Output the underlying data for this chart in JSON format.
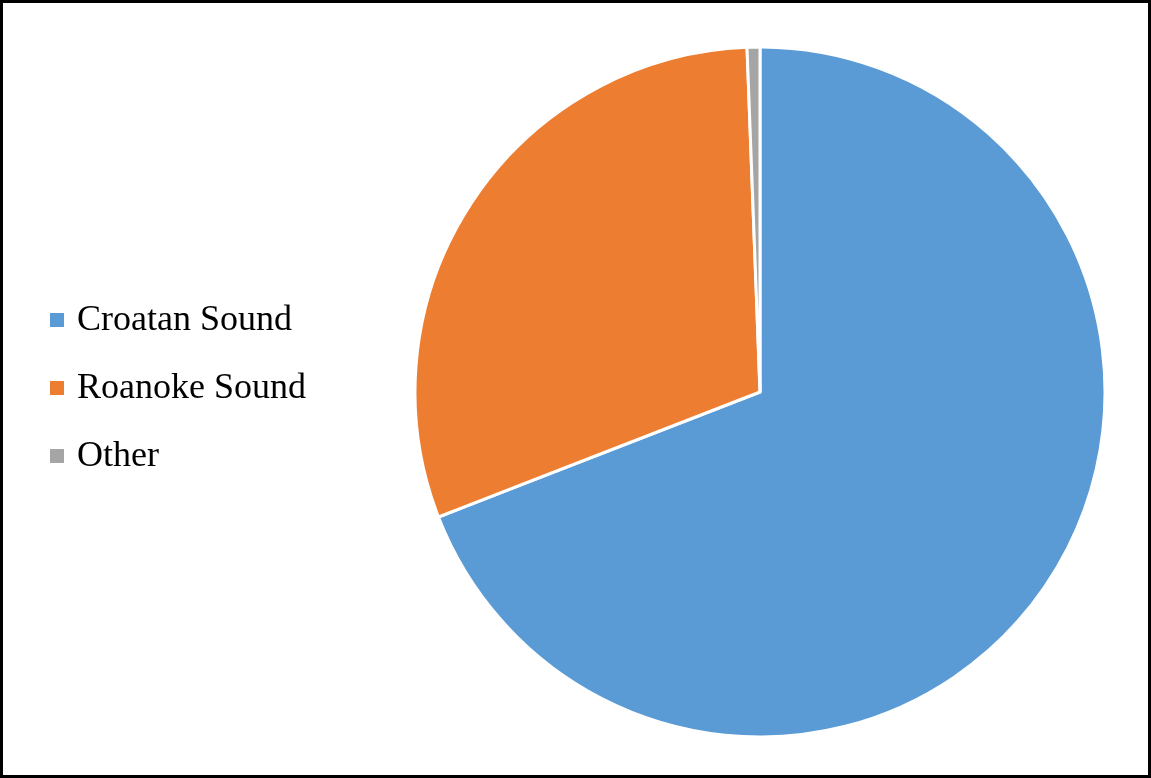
{
  "chart_data": {
    "type": "pie",
    "categories": [
      "Croatan Sound",
      "Roanoke Sound",
      "Other"
    ],
    "values": [
      69.1,
      30.3,
      0.6
    ],
    "colors": [
      "#5b9bd5",
      "#ed7d31",
      "#a5a5a5"
    ],
    "legend": "left"
  }
}
